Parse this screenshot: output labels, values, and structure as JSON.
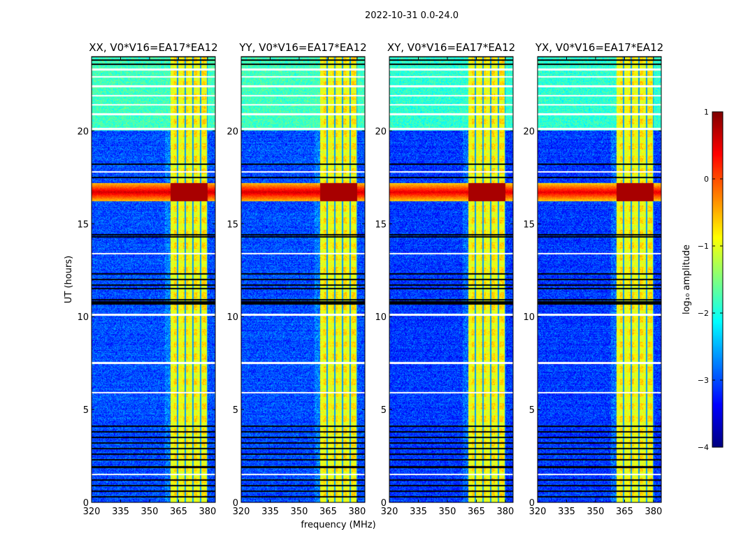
{
  "chart_data": {
    "type": "heatmap",
    "title": "2022-10-31 0.0-24.0",
    "xlabel": "frequency (MHz)",
    "ylabel": "UT (hours)",
    "xlim": [
      320,
      384
    ],
    "ylim": [
      0,
      24
    ],
    "xticks": [
      320,
      335,
      350,
      365,
      380
    ],
    "yticks": [
      0,
      5,
      10,
      15,
      20
    ],
    "panels": [
      {
        "title": "XX, V0*V16=EA17*EA12",
        "pol": "XX"
      },
      {
        "title": "YY, V0*V16=EA17*EA12",
        "pol": "YY"
      },
      {
        "title": "XY, V0*V16=EA17*EA12",
        "pol": "XY"
      },
      {
        "title": "YX, V0*V16=EA17*EA12",
        "pol": "YX"
      }
    ],
    "colorbar": {
      "label": "log₁₀ amplitude",
      "range": [
        -4,
        1
      ],
      "ticks": [
        1,
        0,
        -1,
        -2,
        -3,
        -4
      ],
      "tick_labels": [
        "1",
        "0",
        "−1",
        "−2",
        "−3",
        "−4"
      ],
      "colormap": "jet"
    },
    "features": {
      "background_level": -3.0,
      "rfi_band_mhz": [
        361,
        380
      ],
      "rfi_band_level": -1.0,
      "band_gaps_mhz": [
        364.5,
        368.5,
        372.5,
        376.5,
        380
      ],
      "strong_rfi_hours": [
        16.2,
        17.2
      ],
      "strong_rfi_level": 0.5,
      "elevated_hours": [
        20,
        24
      ],
      "elevated_level": -1.8,
      "flagged_black_hours": [
        0.3,
        0.6,
        0.9,
        1.2,
        1.9,
        2.3,
        2.6,
        2.9,
        3.2,
        3.5,
        3.8,
        4.1,
        10.7,
        10.8,
        10.9,
        11.5,
        11.7,
        12.0,
        12.3,
        14.3,
        14.4,
        17.5,
        18.2,
        23.6,
        23.8,
        24.0
      ],
      "flagged_white_hours": [
        1.5,
        5.9,
        7.5,
        10.1,
        13.4,
        17.8,
        20.1,
        20.9,
        21.4,
        21.9,
        22.4,
        22.9,
        23.3
      ]
    }
  }
}
